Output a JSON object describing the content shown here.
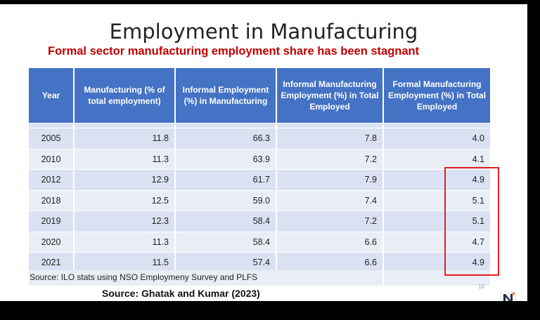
{
  "slide": {
    "title": "Employment in Manufacturing",
    "subtitle": "Formal sector manufacturing employment share has been stagnant",
    "page_number": "10"
  },
  "table": {
    "columns": [
      "Year",
      "Manufacturing (% of total employment)",
      "Informal Employment (%) in Manufacturing",
      "Informal Manufacturing Employment (%) in Total Employed",
      "Formal Manufacturing Employment (%) in Total Employed"
    ],
    "rows": [
      [
        "2005",
        "11.8",
        "66.3",
        "7.8",
        "4.0"
      ],
      [
        "2010",
        "11.3",
        "63.9",
        "7.2",
        "4.1"
      ],
      [
        "2012",
        "12.9",
        "61.7",
        "7.9",
        "4.9"
      ],
      [
        "2018",
        "12.5",
        "59.0",
        "7.4",
        "5.1"
      ],
      [
        "2019",
        "12.3",
        "58.4",
        "7.2",
        "5.1"
      ],
      [
        "2020",
        "11.3",
        "58.4",
        "6.6",
        "4.7"
      ],
      [
        "2021",
        "11.5",
        "57.4",
        "6.6",
        "4.9"
      ]
    ]
  },
  "sources": {
    "table_source": "Source: ILO stats using NSO Employmeny Survey and PLFS",
    "paper_source": "Source: Ghatak and Kumar (2023)"
  },
  "colors": {
    "header_bg": "#4472c4",
    "subtitle": "#c00000",
    "highlight_border": "#e02020"
  }
}
